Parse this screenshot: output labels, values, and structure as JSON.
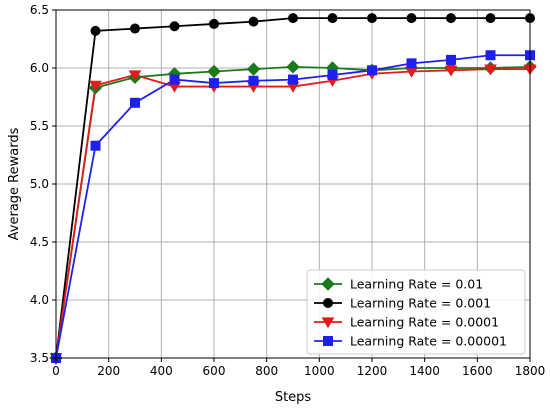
{
  "chart_data": {
    "type": "line",
    "title": "",
    "xlabel": "Steps",
    "ylabel": "Average Rewards",
    "xlim": [
      0,
      1800
    ],
    "ylim": [
      3.5,
      6.5
    ],
    "xticks": [
      0,
      200,
      400,
      600,
      800,
      1000,
      1200,
      1400,
      1600,
      1800
    ],
    "yticks": [
      3.5,
      4.0,
      4.5,
      5.0,
      5.5,
      6.0,
      6.5
    ],
    "grid": true,
    "legend_position": "bottom-right",
    "x": [
      0,
      150,
      300,
      450,
      600,
      750,
      900,
      1050,
      1200,
      1350,
      1500,
      1650,
      1800
    ],
    "series": [
      {
        "name": "Learning Rate = 0.01",
        "color": "#1b7a1b",
        "marker": "diamond",
        "values": [
          3.5,
          5.83,
          5.92,
          5.95,
          5.97,
          5.99,
          6.01,
          6.0,
          5.98,
          6.0,
          6.0,
          6.0,
          6.01
        ]
      },
      {
        "name": "Learning Rate = 0.001",
        "color": "#000000",
        "marker": "circle",
        "values": [
          3.5,
          6.32,
          6.34,
          6.36,
          6.38,
          6.4,
          6.43,
          6.43,
          6.43,
          6.43,
          6.43,
          6.43,
          6.43
        ]
      },
      {
        "name": "Learning Rate = 0.0001",
        "color": "#e41a1c",
        "marker": "triangle-down",
        "values": [
          3.5,
          5.85,
          5.94,
          5.84,
          5.84,
          5.84,
          5.84,
          5.89,
          5.95,
          5.97,
          5.98,
          5.99,
          5.99
        ]
      },
      {
        "name": "Learning Rate = 0.00001",
        "color": "#1f1ff0",
        "marker": "square",
        "values": [
          3.5,
          5.33,
          5.7,
          5.9,
          5.87,
          5.89,
          5.9,
          5.94,
          5.98,
          6.04,
          6.07,
          6.11,
          6.11
        ]
      }
    ]
  }
}
